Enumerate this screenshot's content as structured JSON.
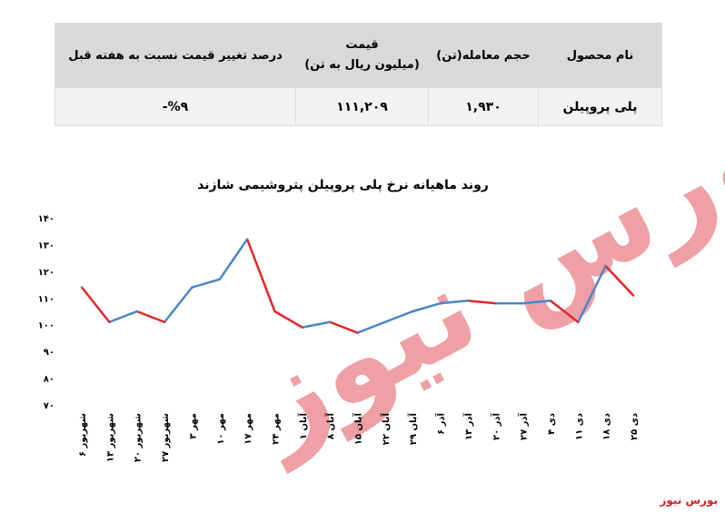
{
  "table": {
    "headers": {
      "product": "نام محصول",
      "volume": "حجم معامله(تن)",
      "price_line1": "قیمت",
      "price_line2": "(میلیون ریال به تن)",
      "change": "درصد تغییر قیمت نسبت به هفته قبل"
    },
    "row": {
      "product": "پلی پروپیلن",
      "volume": "۱,۹۳۰",
      "price": "۱۱۱,۲۰۹",
      "change": "%۹-"
    }
  },
  "watermark": "بورس نیوز",
  "brand": "بورس نیوز",
  "chart_data": {
    "type": "line",
    "title": "روند ماهیانه نرخ پلی پروپیلن پتروشیمی شازند",
    "ylim": [
      70,
      140
    ],
    "yticks": [
      "۱۴۰",
      "۱۳۰",
      "۱۲۰",
      "۱۱۰",
      "۱۰۰",
      "۹۰",
      "۸۰",
      "۷۰"
    ],
    "ytick_values": [
      140,
      130,
      120,
      110,
      100,
      90,
      80,
      70
    ],
    "categories": [
      "۶ شهریور",
      "۱۳ شهریور",
      "۲۰ شهریور",
      "۲۷ شهریور",
      "۳ مهر",
      "۱۰ مهر",
      "۱۷ مهر",
      "۲۴ مهر",
      "۱ آبان",
      "۸ آبان",
      "۱۵ آبان",
      "۲۲ آبان",
      "۲۹ آبان",
      "۶ آذر",
      "۱۳ آذر",
      "۲۰ آذر",
      "۲۷ آذر",
      "۴ دی",
      "۱۱ دی",
      "۱۸ دی",
      "۲۵ دی"
    ],
    "values": [
      114,
      101,
      105,
      101,
      114,
      117,
      132,
      105,
      99,
      101,
      97,
      101,
      105,
      108,
      109,
      108,
      108,
      109,
      101,
      122,
      111
    ],
    "colors": {
      "up": "#4a86c7",
      "down": "#e3262b"
    },
    "grid": false,
    "legend": "none"
  }
}
